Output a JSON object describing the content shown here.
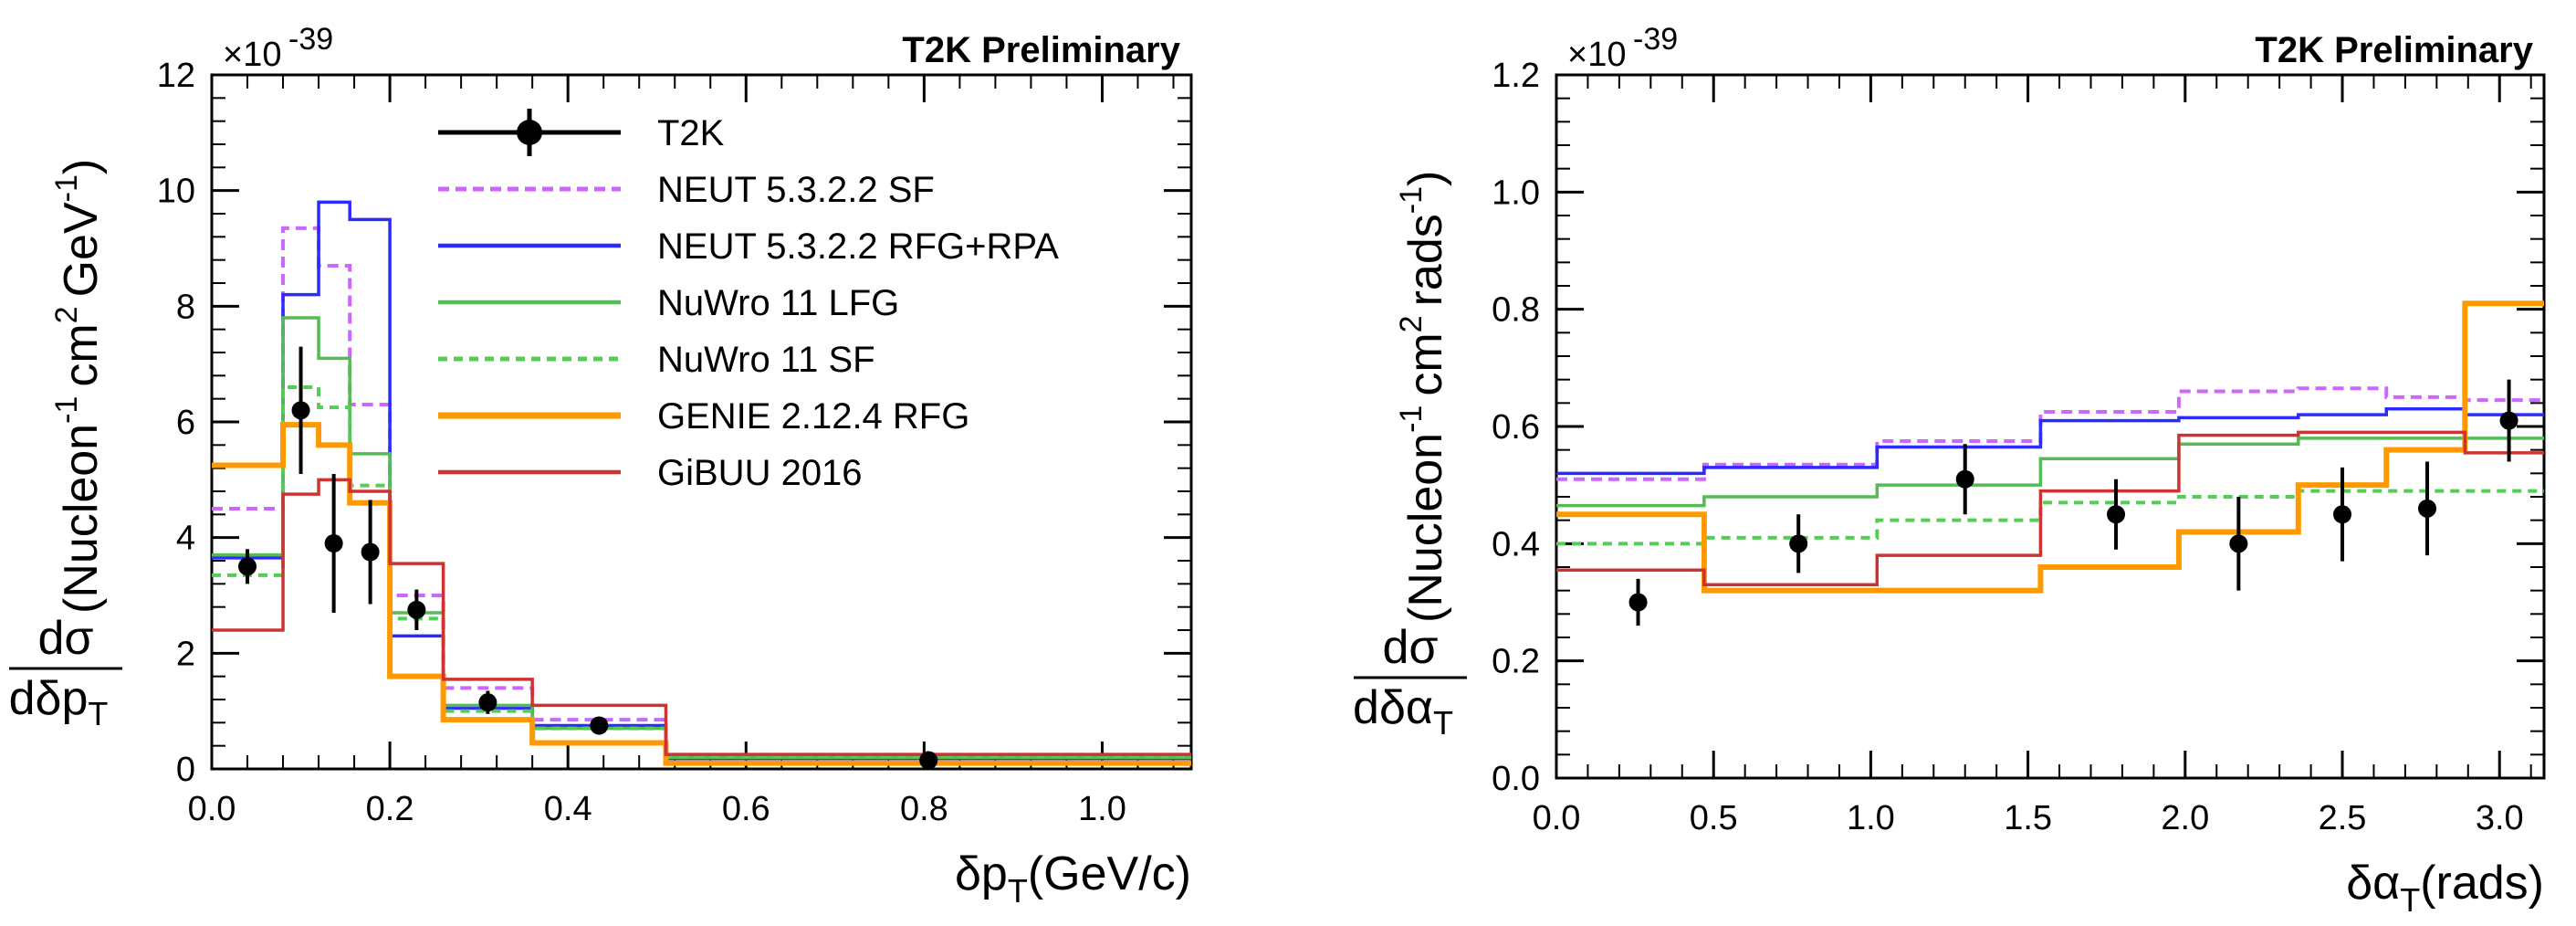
{
  "chart_data": [
    {
      "type": "step-histogram",
      "title": "T2K Preliminary",
      "exponent_label": "×10",
      "exponent_power": "-39",
      "ylabel_num": "dσ",
      "ylabel_den": "dδp",
      "ylabel_den_sub": "T",
      "ylabel_units": "(Nucleon",
      "ylabel_units_2": "cm",
      "ylabel_units_3": "GeV",
      "xlabel": "δp",
      "xlabel_sub": "T",
      "xlabel_units": "(GeV/c)",
      "xlim": [
        0,
        1.1
      ],
      "ylim": [
        0,
        12
      ],
      "xticks": [
        0.0,
        0.2,
        0.4,
        0.6,
        0.8,
        1.0
      ],
      "xtick_labels": [
        "0.0",
        "0.2",
        "0.4",
        "0.6",
        "0.8",
        "1.0"
      ],
      "yticks": [
        0,
        2,
        4,
        6,
        8,
        10,
        12
      ],
      "ytick_labels": [
        "0",
        "2",
        "4",
        "6",
        "8",
        "10",
        "12"
      ],
      "bin_edges": [
        0,
        0.08,
        0.12,
        0.155,
        0.2,
        0.26,
        0.36,
        0.51,
        1.1
      ],
      "legend": {
        "placement": "top-center",
        "entries": [
          "T2K",
          "NEUT 5.3.2.2 SF",
          "NEUT 5.3.2.2 RFG+RPA",
          "NuWro 11 LFG",
          "NuWro 11 SF",
          "GENIE 2.12.4 RFG",
          "GiBUU 2016"
        ]
      },
      "data_points": {
        "name": "T2K",
        "x": [
          0.04,
          0.1,
          0.137,
          0.178,
          0.23,
          0.31,
          0.435,
          0.805
        ],
        "y": [
          3.5,
          6.2,
          3.9,
          3.75,
          2.75,
          1.15,
          0.75,
          0.15
        ],
        "err": [
          0.3,
          1.1,
          1.2,
          0.9,
          0.35,
          0.2,
          0.1,
          0.08
        ]
      },
      "series": [
        {
          "name": "NEUT 5.3.2.2 SF",
          "color": "#cc66ff",
          "dash": "12,7",
          "width": 4,
          "values": [
            4.5,
            9.35,
            8.7,
            6.3,
            3.0,
            1.4,
            0.85,
            0.2
          ]
        },
        {
          "name": "NEUT 5.3.2.2 RFG+RPA",
          "color": "#2b2bff",
          "dash": "",
          "width": 3.5,
          "values": [
            3.65,
            8.2,
            9.8,
            9.5,
            2.3,
            1.05,
            0.75,
            0.18
          ]
        },
        {
          "name": "NuWro 11 LFG",
          "color": "#55bb55",
          "dash": "",
          "width": 3.5,
          "values": [
            3.7,
            7.8,
            7.1,
            5.45,
            2.7,
            1.1,
            0.7,
            0.2
          ]
        },
        {
          "name": "NuWro 11 SF",
          "color": "#55cc55",
          "dash": "10,7",
          "width": 4,
          "values": [
            3.35,
            6.6,
            6.25,
            4.9,
            2.6,
            1.0,
            0.7,
            0.22
          ]
        },
        {
          "name": "GENIE 2.12.4 RFG",
          "color": "#ff9900",
          "dash": "",
          "width": 6,
          "values": [
            5.25,
            5.95,
            5.6,
            4.6,
            1.6,
            0.85,
            0.45,
            0.1
          ]
        },
        {
          "name": "GiBUU 2016",
          "color": "#cc3333",
          "dash": "",
          "width": 3.5,
          "values": [
            2.4,
            4.75,
            5.0,
            4.8,
            3.55,
            1.55,
            1.1,
            0.25
          ]
        }
      ]
    },
    {
      "type": "step-histogram",
      "title": "T2K Preliminary",
      "exponent_label": "×10",
      "exponent_power": "-39",
      "ylabel_num": "dσ",
      "ylabel_den": "dδα",
      "ylabel_den_sub": "T",
      "ylabel_units": "(Nucleon",
      "ylabel_units_2": "cm",
      "ylabel_units_3": "rads",
      "xlabel": "δα",
      "xlabel_sub": "T",
      "xlabel_units": "(rads)",
      "xlim": [
        0,
        3.14159
      ],
      "ylim": [
        0,
        1.2
      ],
      "xticks": [
        0.0,
        0.5,
        1.0,
        1.5,
        2.0,
        2.5,
        3.0
      ],
      "xtick_labels": [
        "0.0",
        "0.5",
        "1.0",
        "1.5",
        "2.0",
        "2.5",
        "3.0"
      ],
      "yticks": [
        0,
        0.2,
        0.4,
        0.6,
        0.8,
        1.0,
        1.2
      ],
      "ytick_labels": [
        "0.0",
        "0.2",
        "0.4",
        "0.6",
        "0.8",
        "1.0",
        "1.2"
      ],
      "bin_edges": [
        0,
        0.47,
        1.02,
        1.54,
        1.98,
        2.36,
        2.64,
        2.89,
        3.14159
      ],
      "data_points": {
        "name": "T2K",
        "x": [
          0.26,
          0.77,
          1.3,
          1.78,
          2.17,
          2.5,
          2.77,
          3.03
        ],
        "y": [
          0.3,
          0.4,
          0.51,
          0.45,
          0.4,
          0.45,
          0.46,
          0.61
        ],
        "err": [
          0.04,
          0.05,
          0.06,
          0.06,
          0.08,
          0.08,
          0.08,
          0.07
        ]
      },
      "series": [
        {
          "name": "NEUT 5.3.2.2 SF",
          "color": "#cc66ff",
          "dash": "12,7",
          "width": 4,
          "values": [
            0.51,
            0.535,
            0.575,
            0.625,
            0.66,
            0.665,
            0.65,
            0.645
          ]
        },
        {
          "name": "NEUT 5.3.2.2 RFG+RPA",
          "color": "#2b2bff",
          "dash": "",
          "width": 3.5,
          "values": [
            0.52,
            0.53,
            0.565,
            0.61,
            0.615,
            0.62,
            0.63,
            0.62
          ]
        },
        {
          "name": "NuWro 11 LFG",
          "color": "#55bb55",
          "dash": "",
          "width": 3.5,
          "values": [
            0.465,
            0.48,
            0.5,
            0.545,
            0.57,
            0.58,
            0.58,
            0.58
          ]
        },
        {
          "name": "NuWro 11 SF",
          "color": "#55cc55",
          "dash": "10,7",
          "width": 4,
          "values": [
            0.4,
            0.41,
            0.44,
            0.47,
            0.48,
            0.49,
            0.49,
            0.49
          ]
        },
        {
          "name": "GENIE 2.12.4 RFG",
          "color": "#ff9900",
          "dash": "",
          "width": 6,
          "values": [
            0.45,
            0.32,
            0.32,
            0.36,
            0.42,
            0.5,
            0.56,
            0.81
          ]
        },
        {
          "name": "GiBUU 2016",
          "color": "#cc3333",
          "dash": "",
          "width": 3.5,
          "values": [
            0.355,
            0.33,
            0.38,
            0.49,
            0.585,
            0.59,
            0.59,
            0.555
          ]
        }
      ]
    }
  ]
}
